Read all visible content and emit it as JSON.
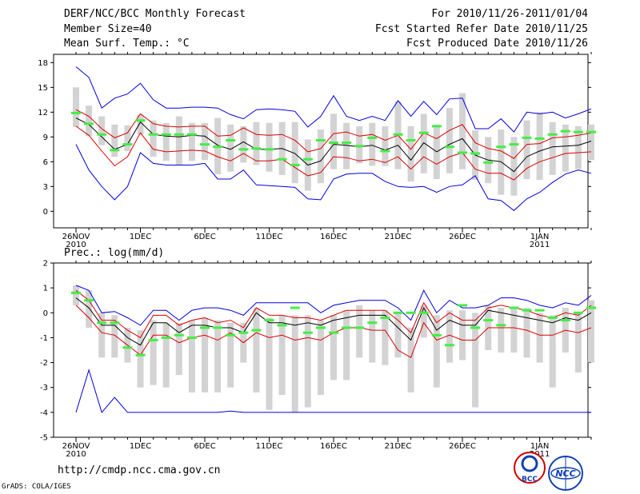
{
  "header": {
    "title": "DERF/NCC/BCC Monthly Forecast",
    "member_size": "Member Size=40",
    "variable": "Mean Surf. Temp.: °C",
    "forecast_period": "For 2010/11/26-2011/01/04",
    "start_date": "Fcst Started Refer Date 2010/11/25",
    "produced_date": "Fcst Produced Date 2010/11/26"
  },
  "footer": {
    "url": "http://cmdp.ncc.cma.gov.cn",
    "credit": "GrADS: COLA/IGES",
    "logo1_text": "BCC",
    "logo2_text": "NCC"
  },
  "colors": {
    "box": "#d3d3d3",
    "median": "#44ee44",
    "mean": "#000000",
    "stdband": "#dd0000",
    "envelope": "#0000dd"
  },
  "chart_data": [
    {
      "type": "line",
      "title": "Mean Surf. Temp.: °C",
      "xlabel": "",
      "ylabel": "°C",
      "ylim": [
        -2,
        19
      ],
      "yticks": [
        0,
        3,
        6,
        9,
        12,
        15,
        18
      ],
      "x_tick_labels": [
        {
          "day": 0,
          "lines": [
            "26NOV",
            "2010"
          ]
        },
        {
          "day": 5,
          "lines": [
            "1DEC"
          ]
        },
        {
          "day": 10,
          "lines": [
            "6DEC"
          ]
        },
        {
          "day": 15,
          "lines": [
            "11DEC"
          ]
        },
        {
          "day": 20,
          "lines": [
            "16DEC"
          ]
        },
        {
          "day": 25,
          "lines": [
            "21DEC"
          ]
        },
        {
          "day": 30,
          "lines": [
            "26DEC"
          ]
        },
        {
          "day": 36,
          "lines": [
            "1JAN",
            "2011"
          ]
        }
      ],
      "series": [
        {
          "name": "max",
          "values": [
            17.5,
            16.2,
            12.5,
            13.7,
            14.2,
            15.5,
            13.5,
            12.5,
            12.5,
            12.6,
            12.6,
            12.5,
            11.7,
            11.2,
            12.3,
            12.4,
            12.3,
            12.1,
            10.2,
            11.5,
            14.0,
            11.5,
            11.0,
            11.5,
            11.0,
            13.4,
            11.5,
            13.3,
            11.7,
            13.6,
            13.7,
            10.0,
            10.0,
            11.2,
            9.6,
            12.0,
            11.8,
            12.0,
            11.3,
            11.8,
            12.4
          ]
        },
        {
          "name": "mean_plus_std",
          "values": [
            12.3,
            11.5,
            10.0,
            8.9,
            9.5,
            11.8,
            10.6,
            10.3,
            10.2,
            10.3,
            10.3,
            9.1,
            9.2,
            10.1,
            9.3,
            9.2,
            9.3,
            8.6,
            7.2,
            7.6,
            9.4,
            9.6,
            9.1,
            9.3,
            8.6,
            9.2,
            7.5,
            9.5,
            8.8,
            9.8,
            10.5,
            8.3,
            7.6,
            7.3,
            6.4,
            8.1,
            8.2,
            8.9,
            9.0,
            9.2,
            9.5
          ]
        },
        {
          "name": "mean",
          "values": [
            11.3,
            10.5,
            9.0,
            7.5,
            8.1,
            10.8,
            9.3,
            9.1,
            9.0,
            9.2,
            9.1,
            8.0,
            7.5,
            8.4,
            7.5,
            7.5,
            7.6,
            7.0,
            5.6,
            6.1,
            8.1,
            8.0,
            7.8,
            8.0,
            7.4,
            8.0,
            6.2,
            8.3,
            7.2,
            8.1,
            8.8,
            6.8,
            6.2,
            6.0,
            4.8,
            6.6,
            7.3,
            7.8,
            7.9,
            8.0,
            8.5
          ]
        },
        {
          "name": "mean_minus_std",
          "values": [
            10.3,
            9.2,
            7.3,
            5.5,
            6.6,
            9.5,
            7.5,
            7.2,
            7.3,
            7.4,
            7.3,
            6.6,
            6.1,
            7.0,
            6.1,
            6.1,
            6.3,
            5.3,
            4.3,
            4.7,
            6.6,
            6.5,
            6.1,
            6.3,
            5.9,
            6.6,
            5.1,
            6.6,
            5.7,
            6.6,
            7.1,
            5.1,
            4.6,
            4.6,
            3.8,
            5.2,
            6.0,
            6.5,
            7.0,
            7.1,
            7.2
          ]
        },
        {
          "name": "min",
          "values": [
            8.1,
            5.0,
            3.0,
            1.4,
            3.0,
            7.1,
            5.8,
            5.6,
            5.6,
            5.6,
            5.8,
            3.9,
            3.9,
            5.0,
            3.2,
            3.1,
            3.0,
            2.9,
            1.5,
            1.4,
            3.9,
            4.5,
            4.6,
            4.6,
            3.6,
            3.0,
            2.9,
            3.0,
            2.3,
            3.0,
            3.2,
            4.3,
            1.5,
            1.3,
            0.1,
            1.5,
            2.3,
            3.5,
            4.5,
            5.0,
            4.6
          ]
        },
        {
          "name": "median",
          "values": [
            11.9,
            10.6,
            9.3,
            7.4,
            8.1,
            11.0,
            9.3,
            9.3,
            9.3,
            9.3,
            8.1,
            7.8,
            8.6,
            7.5,
            7.6,
            7.5,
            6.3,
            5.6,
            6.3,
            8.6,
            8.3,
            8.3,
            7.9,
            8.9,
            7.3,
            9.3,
            8.6,
            9.5,
            10.3,
            7.8,
            7.1,
            7.0,
            5.9,
            7.8,
            8.1,
            8.9,
            8.8,
            9.3,
            9.7,
            9.6,
            9.6
          ]
        },
        {
          "name": "box_top",
          "values": [
            15.0,
            12.8,
            11.5,
            10.5,
            10.4,
            11.7,
            11.0,
            10.7,
            11.5,
            10.7,
            10.7,
            11.3,
            10.5,
            10.3,
            10.8,
            10.7,
            10.8,
            10.8,
            8.7,
            9.9,
            11.8,
            10.7,
            10.3,
            10.7,
            10.3,
            13.3,
            10.3,
            11.8,
            10.5,
            12.5,
            14.3,
            9.8,
            9.0,
            9.9,
            9.0,
            11.0,
            12.0,
            10.8,
            10.5,
            10.3,
            10.5
          ]
        },
        {
          "name": "box_bottom",
          "values": [
            10.2,
            9.1,
            8.0,
            6.6,
            7.3,
            9.3,
            6.6,
            6.1,
            5.6,
            6.1,
            6.2,
            4.5,
            4.8,
            5.9,
            5.6,
            4.8,
            4.4,
            3.4,
            2.5,
            3.4,
            5.1,
            5.1,
            5.8,
            5.5,
            5.5,
            5.1,
            3.6,
            4.6,
            3.9,
            4.6,
            5.1,
            3.8,
            3.4,
            2.0,
            1.9,
            3.9,
            3.8,
            4.4,
            4.8,
            5.1,
            6.2
          ]
        }
      ]
    },
    {
      "type": "line",
      "title": "Prec.: log(mm/d)",
      "xlabel": "",
      "ylabel": "log(mm/d)",
      "ylim": [
        -5,
        2
      ],
      "yticks": [
        -5,
        -4,
        -3,
        -2,
        -1,
        0,
        1,
        2
      ],
      "x_tick_labels": [
        {
          "day": 0,
          "lines": [
            "26NOV",
            "2010"
          ]
        },
        {
          "day": 5,
          "lines": [
            "1DEC"
          ]
        },
        {
          "day": 10,
          "lines": [
            "6DEC"
          ]
        },
        {
          "day": 15,
          "lines": [
            "11DEC"
          ]
        },
        {
          "day": 20,
          "lines": [
            "16DEC"
          ]
        },
        {
          "day": 25,
          "lines": [
            "21DEC"
          ]
        },
        {
          "day": 30,
          "lines": [
            "26DEC"
          ]
        },
        {
          "day": 36,
          "lines": [
            "1JAN",
            "2011"
          ]
        }
      ],
      "series": [
        {
          "name": "max",
          "values": [
            1.1,
            0.9,
            0.0,
            0.05,
            -0.2,
            -0.5,
            0.1,
            0.1,
            -0.3,
            0.1,
            0.2,
            0.2,
            0.1,
            -0.1,
            0.4,
            0.4,
            0.4,
            0.4,
            0.4,
            0.0,
            0.3,
            0.4,
            0.5,
            0.5,
            0.5,
            0.2,
            -0.3,
            0.9,
            0.0,
            0.5,
            0.2,
            0.2,
            0.3,
            0.6,
            0.6,
            0.5,
            0.3,
            0.2,
            0.4,
            0.3,
            0.7
          ]
        },
        {
          "name": "mean_plus_std",
          "values": [
            0.9,
            0.5,
            -0.3,
            -0.3,
            -0.7,
            -1.0,
            -0.1,
            -0.1,
            -0.5,
            -0.3,
            -0.2,
            -0.4,
            -0.3,
            -0.6,
            0.2,
            -0.1,
            -0.1,
            -0.2,
            -0.2,
            -0.3,
            -0.1,
            0.1,
            0.1,
            0.1,
            0.1,
            -0.3,
            -0.8,
            0.4,
            -0.4,
            0.0,
            -0.3,
            -0.3,
            0.2,
            0.3,
            0.2,
            0.1,
            -0.1,
            -0.2,
            0.0,
            -0.1,
            0.3
          ]
        },
        {
          "name": "mean",
          "values": [
            0.6,
            0.2,
            -0.5,
            -0.5,
            -1.0,
            -1.3,
            -0.4,
            -0.4,
            -0.8,
            -0.5,
            -0.5,
            -0.6,
            -0.6,
            -0.8,
            -0.0,
            -0.4,
            -0.4,
            -0.5,
            -0.4,
            -0.5,
            -0.3,
            -0.2,
            -0.1,
            -0.1,
            -0.1,
            -0.6,
            -1.1,
            0.2,
            -0.7,
            -0.3,
            -0.5,
            -0.5,
            0.1,
            0.0,
            -0.1,
            -0.2,
            -0.3,
            -0.4,
            -0.2,
            -0.3,
            0.0
          ]
        },
        {
          "name": "mean_minus_std",
          "values": [
            0.3,
            -0.2,
            -0.8,
            -0.9,
            -1.3,
            -1.7,
            -0.9,
            -0.9,
            -1.2,
            -1.0,
            -0.9,
            -1.1,
            -0.8,
            -1.2,
            -0.8,
            -1.0,
            -0.9,
            -1.1,
            -1.0,
            -1.1,
            -0.8,
            -0.6,
            -0.6,
            -0.7,
            -0.7,
            -1.5,
            -1.8,
            -0.4,
            -1.1,
            -0.9,
            -1.1,
            -1.1,
            -0.6,
            -0.6,
            -0.6,
            -0.7,
            -0.9,
            -0.9,
            -0.7,
            -0.8,
            -0.6
          ]
        },
        {
          "name": "min",
          "values": [
            -4.0,
            -2.3,
            -4.0,
            -3.4,
            -4.0,
            -4.0,
            -4.0,
            -4.0,
            -4.0,
            -4.0,
            -4.0,
            -4.0,
            -3.95,
            -4.0,
            -4.0,
            -4.0,
            -4.0,
            -4.0,
            -4.0,
            -4.0,
            -4.0,
            -4.0,
            -4.0,
            -4.0,
            -4.0,
            -4.0,
            -4.0,
            -4.0,
            -4.0,
            -4.0,
            -4.0,
            -4.0,
            -4.0,
            -4.0,
            -4.0,
            -4.0,
            -4.0,
            -4.0,
            -4.0,
            -4.0,
            -4.0
          ]
        },
        {
          "name": "median",
          "values": [
            0.8,
            0.5,
            -0.4,
            -0.4,
            -1.4,
            -1.7,
            -1.1,
            -1.0,
            -0.9,
            -1.0,
            -0.6,
            -0.6,
            -0.9,
            -0.8,
            -0.7,
            -0.3,
            -0.5,
            0.2,
            -0.8,
            -0.6,
            -0.8,
            -0.6,
            -0.6,
            -0.4,
            -0.2,
            0.0,
            0.0,
            0.0,
            -0.9,
            -1.3,
            0.3,
            -0.6,
            -0.3,
            -0.5,
            0.2,
            0.1,
            0.1,
            -0.2,
            -0.3,
            0.0,
            0.2
          ]
        },
        {
          "name": "box_top",
          "values": [
            1.1,
            0.9,
            0.0,
            -0.1,
            -0.6,
            -0.7,
            -0.3,
            -0.4,
            -0.4,
            -0.3,
            -0.2,
            -0.3,
            -0.4,
            -0.4,
            0.2,
            -0.2,
            -0.1,
            -0.1,
            -0.1,
            -0.3,
            -0.1,
            0.1,
            0.3,
            0.1,
            0.1,
            0.0,
            -0.6,
            0.3,
            -0.1,
            0.1,
            0.1,
            0.0,
            0.3,
            0.2,
            0.2,
            0.2,
            0.0,
            -0.1,
            0.2,
            0.0,
            0.5
          ]
        },
        {
          "name": "box_bottom",
          "values": [
            0.3,
            -0.6,
            -1.8,
            -1.8,
            -2.0,
            -3.0,
            -2.9,
            -3.0,
            -2.5,
            -3.2,
            -3.2,
            -3.2,
            -3.0,
            -2.0,
            -3.2,
            -3.9,
            -3.3,
            -4.0,
            -3.8,
            -3.3,
            -2.7,
            -2.7,
            -1.8,
            -2.0,
            -2.1,
            -1.8,
            -3.2,
            -1.0,
            -3.0,
            -2.0,
            -1.9,
            -3.8,
            -1.5,
            -1.6,
            -1.6,
            -1.8,
            -2.0,
            -3.0,
            -1.6,
            -2.4,
            -2.0
          ]
        }
      ]
    }
  ]
}
